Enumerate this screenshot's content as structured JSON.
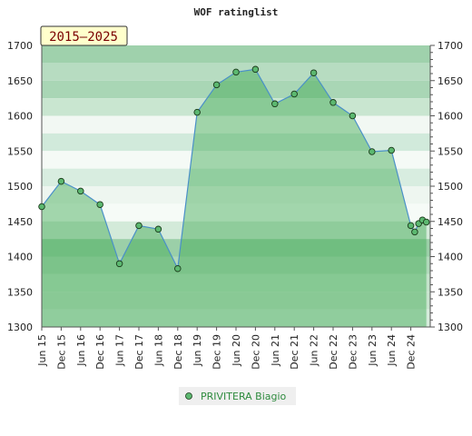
{
  "chart_data": {
    "type": "area",
    "title": "WOF ratinglist",
    "badge": "2015–2025",
    "ylim": [
      1300,
      1700
    ],
    "yticks": [
      1300,
      1350,
      1400,
      1450,
      1500,
      1550,
      1600,
      1650,
      1700
    ],
    "xlim": [
      0,
      20
    ],
    "xtick_labels": [
      "Jun 15",
      "Dec 15",
      "Jun 16",
      "Dec 16",
      "Jun 17",
      "Dec 17",
      "Jun 18",
      "Dec 18",
      "Jun 19",
      "Dec 19",
      "Jun 20",
      "Dec 20",
      "Jun 21",
      "Dec 21",
      "Jun 22",
      "Dec 22",
      "Dec 23",
      "Jun 23",
      "Jun 24",
      "Dec 24"
    ],
    "grid": true,
    "legend_position": "bottom-center",
    "series": [
      {
        "name": "PRIVITERA Biagio",
        "x": [
          0,
          1,
          2,
          3,
          4,
          5,
          6,
          7,
          8,
          9,
          10,
          11,
          12,
          13,
          14,
          15,
          16,
          17,
          18,
          19,
          19.2,
          19.4,
          19.6,
          19.8
        ],
        "values": [
          1471,
          1507,
          1493,
          1474,
          1390,
          1444,
          1439,
          1383,
          1605,
          1644,
          1662,
          1666,
          1617,
          1631,
          1661,
          1619,
          1600,
          1549,
          1551,
          1444,
          1435,
          1447,
          1452,
          1449
        ]
      }
    ],
    "colors": {
      "line": "#4a90c8",
      "marker_fill": "#5cb870",
      "marker_stroke": "#1a3a1a",
      "fill": "#3ca850",
      "legend_text": "#2e8b3e",
      "badge_bg": "#ffffcc",
      "badge_text": "#7a0000"
    }
  }
}
